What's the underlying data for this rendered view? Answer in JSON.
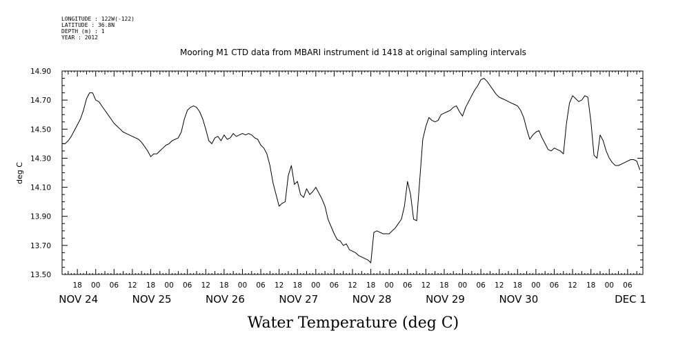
{
  "header": {
    "lines": [
      "LONGITUDE : 122W(-122)",
      "LATITUDE : 36.8N",
      "DEPTH (m) : 1",
      "YEAR : 2012"
    ]
  },
  "chart_data": {
    "type": "line",
    "title": "Mooring M1 CTD data from MBARI instrument id 1418 at original sampling intervals",
    "xlabel": "Water Temperature (deg C)",
    "ylabel": "deg C",
    "ylim": [
      13.5,
      14.9
    ],
    "xlim_hours": [
      -11,
      179
    ],
    "yticks": [
      "14.90",
      "14.70",
      "14.50",
      "14.30",
      "14.10",
      "13.90",
      "13.70",
      "13.50"
    ],
    "hour_ticks": [
      "18",
      "00",
      "06",
      "12",
      "18",
      "00",
      "06",
      "12",
      "18",
      "00",
      "06",
      "12",
      "18",
      "00",
      "06",
      "12",
      "18",
      "00",
      "06",
      "12",
      "18",
      "00",
      "06",
      "12",
      "18",
      "00",
      "06",
      "12",
      "18",
      "00",
      "06"
    ],
    "day_labels": [
      "NOV 24",
      "NOV 25",
      "NOV 26",
      "NOV 27",
      "NOV 28",
      "NOV 29",
      "NOV 30",
      "DEC 1"
    ],
    "grid": false,
    "series": [
      {
        "color": "#000000",
        "points": [
          [
            -11,
            14.4
          ],
          [
            -10,
            14.4
          ],
          [
            -9,
            14.42
          ],
          [
            -8,
            14.45
          ],
          [
            -7,
            14.49
          ],
          [
            -6,
            14.53
          ],
          [
            -5,
            14.57
          ],
          [
            -4,
            14.63
          ],
          [
            -3,
            14.71
          ],
          [
            -2,
            14.75
          ],
          [
            -1,
            14.75
          ],
          [
            0,
            14.7
          ],
          [
            1,
            14.69
          ],
          [
            2,
            14.66
          ],
          [
            3,
            14.63
          ],
          [
            4,
            14.6
          ],
          [
            5,
            14.57
          ],
          [
            6,
            14.54
          ],
          [
            7,
            14.52
          ],
          [
            8,
            14.5
          ],
          [
            9,
            14.48
          ],
          [
            10,
            14.47
          ],
          [
            11,
            14.46
          ],
          [
            12,
            14.45
          ],
          [
            13,
            14.44
          ],
          [
            14,
            14.43
          ],
          [
            15,
            14.41
          ],
          [
            16,
            14.38
          ],
          [
            17,
            14.35
          ],
          [
            18,
            14.31
          ],
          [
            19,
            14.33
          ],
          [
            20,
            14.33
          ],
          [
            21,
            14.35
          ],
          [
            22,
            14.37
          ],
          [
            23,
            14.39
          ],
          [
            24,
            14.4
          ],
          [
            25,
            14.42
          ],
          [
            26,
            14.43
          ],
          [
            27,
            14.44
          ],
          [
            28,
            14.48
          ],
          [
            29,
            14.57
          ],
          [
            30,
            14.63
          ],
          [
            31,
            14.65
          ],
          [
            32,
            14.66
          ],
          [
            33,
            14.65
          ],
          [
            34,
            14.62
          ],
          [
            35,
            14.57
          ],
          [
            36,
            14.5
          ],
          [
            37,
            14.42
          ],
          [
            38,
            14.4
          ],
          [
            39,
            14.44
          ],
          [
            40,
            14.45
          ],
          [
            41,
            14.42
          ],
          [
            42,
            14.46
          ],
          [
            43,
            14.43
          ],
          [
            44,
            14.44
          ],
          [
            45,
            14.47
          ],
          [
            46,
            14.45
          ],
          [
            47,
            14.46
          ],
          [
            48,
            14.47
          ],
          [
            49,
            14.46
          ],
          [
            50,
            14.47
          ],
          [
            51,
            14.46
          ],
          [
            52,
            14.44
          ],
          [
            53,
            14.43
          ],
          [
            54,
            14.39
          ],
          [
            55,
            14.37
          ],
          [
            56,
            14.33
          ],
          [
            57,
            14.25
          ],
          [
            58,
            14.13
          ],
          [
            59,
            14.05
          ],
          [
            60,
            13.97
          ],
          [
            61,
            13.99
          ],
          [
            62,
            14.0
          ],
          [
            63,
            14.18
          ],
          [
            64,
            14.25
          ],
          [
            65,
            14.12
          ],
          [
            66,
            14.14
          ],
          [
            67,
            14.05
          ],
          [
            68,
            14.03
          ],
          [
            69,
            14.09
          ],
          [
            70,
            14.05
          ],
          [
            71,
            14.07
          ],
          [
            72,
            14.1
          ],
          [
            73,
            14.06
          ],
          [
            74,
            14.02
          ],
          [
            75,
            13.97
          ],
          [
            76,
            13.88
          ],
          [
            77,
            13.83
          ],
          [
            78,
            13.78
          ],
          [
            79,
            13.74
          ],
          [
            80,
            13.73
          ],
          [
            81,
            13.7
          ],
          [
            82,
            13.71
          ],
          [
            83,
            13.67
          ],
          [
            84,
            13.66
          ],
          [
            85,
            13.65
          ],
          [
            86,
            13.63
          ],
          [
            87,
            13.62
          ],
          [
            88,
            13.61
          ],
          [
            89,
            13.6
          ],
          [
            90,
            13.58
          ],
          [
            91,
            13.79
          ],
          [
            92,
            13.8
          ],
          [
            93,
            13.79
          ],
          [
            94,
            13.78
          ],
          [
            95,
            13.78
          ],
          [
            96,
            13.78
          ],
          [
            97,
            13.8
          ],
          [
            98,
            13.82
          ],
          [
            99,
            13.85
          ],
          [
            100,
            13.88
          ],
          [
            101,
            13.97
          ],
          [
            102,
            14.14
          ],
          [
            103,
            14.05
          ],
          [
            104,
            13.88
          ],
          [
            105,
            13.87
          ],
          [
            106,
            14.15
          ],
          [
            107,
            14.43
          ],
          [
            108,
            14.52
          ],
          [
            109,
            14.58
          ],
          [
            110,
            14.56
          ],
          [
            111,
            14.55
          ],
          [
            112,
            14.56
          ],
          [
            113,
            14.6
          ],
          [
            114,
            14.61
          ],
          [
            115,
            14.62
          ],
          [
            116,
            14.63
          ],
          [
            117,
            14.65
          ],
          [
            118,
            14.66
          ],
          [
            119,
            14.62
          ],
          [
            120,
            14.59
          ],
          [
            121,
            14.65
          ],
          [
            122,
            14.69
          ],
          [
            123,
            14.73
          ],
          [
            124,
            14.77
          ],
          [
            125,
            14.8
          ],
          [
            126,
            14.84
          ],
          [
            127,
            14.85
          ],
          [
            128,
            14.83
          ],
          [
            129,
            14.8
          ],
          [
            130,
            14.77
          ],
          [
            131,
            14.74
          ],
          [
            132,
            14.72
          ],
          [
            133,
            14.71
          ],
          [
            134,
            14.7
          ],
          [
            135,
            14.69
          ],
          [
            136,
            14.68
          ],
          [
            137,
            14.67
          ],
          [
            138,
            14.66
          ],
          [
            139,
            14.63
          ],
          [
            140,
            14.58
          ],
          [
            141,
            14.5
          ],
          [
            142,
            14.43
          ],
          [
            143,
            14.46
          ],
          [
            144,
            14.48
          ],
          [
            145,
            14.49
          ],
          [
            146,
            14.44
          ],
          [
            147,
            14.4
          ],
          [
            148,
            14.36
          ],
          [
            149,
            14.35
          ],
          [
            150,
            14.37
          ],
          [
            151,
            14.36
          ],
          [
            152,
            14.35
          ],
          [
            153,
            14.33
          ],
          [
            154,
            14.54
          ],
          [
            155,
            14.68
          ],
          [
            156,
            14.73
          ],
          [
            157,
            14.71
          ],
          [
            158,
            14.69
          ],
          [
            159,
            14.7
          ],
          [
            160,
            14.73
          ],
          [
            161,
            14.72
          ],
          [
            162,
            14.55
          ],
          [
            163,
            14.32
          ],
          [
            164,
            14.3
          ],
          [
            165,
            14.46
          ],
          [
            166,
            14.42
          ],
          [
            167,
            14.35
          ],
          [
            168,
            14.3
          ],
          [
            169,
            14.27
          ],
          [
            170,
            14.25
          ],
          [
            171,
            14.25
          ],
          [
            172,
            14.26
          ],
          [
            173,
            14.27
          ],
          [
            174,
            14.28
          ],
          [
            175,
            14.29
          ],
          [
            176,
            14.29
          ],
          [
            177,
            14.28
          ],
          [
            178,
            14.22
          ]
        ]
      }
    ]
  }
}
